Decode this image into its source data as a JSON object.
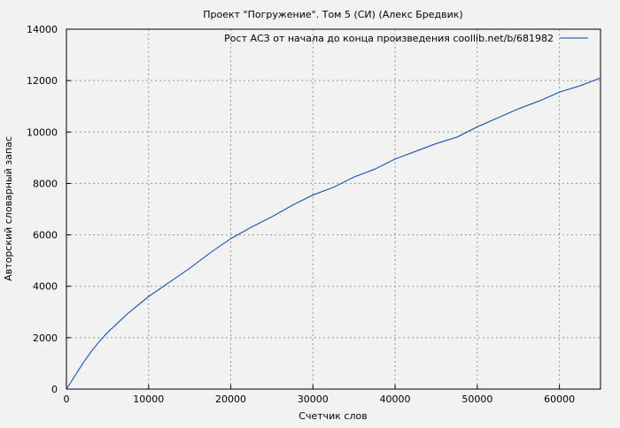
{
  "chart_data": {
    "type": "line",
    "title": "Проект \"Погружение\". Том 5 (СИ) (Алекс Бредвик)",
    "xlabel": "Счетчик слов",
    "ylabel": "Авторский словарный запас",
    "xlim": [
      0,
      65000
    ],
    "ylim": [
      0,
      14000
    ],
    "xticks": [
      0,
      10000,
      20000,
      30000,
      40000,
      50000,
      60000
    ],
    "yticks": [
      0,
      2000,
      4000,
      6000,
      8000,
      10000,
      12000,
      14000
    ],
    "grid": true,
    "legend_position": "top-right",
    "series": [
      {
        "name": "Рост АСЗ от начала до конца произведения coollib.net/b/681982",
        "color": "#0044aa",
        "x": [
          0,
          1000,
          2000,
          3000,
          4000,
          5000,
          6000,
          7500,
          10000,
          12500,
          15000,
          17500,
          20000,
          22500,
          25000,
          27500,
          30000,
          32500,
          35000,
          37500,
          40000,
          42500,
          45000,
          47500,
          50000,
          52500,
          55000,
          57500,
          60000,
          62500,
          65000
        ],
        "y": [
          0,
          500,
          1000,
          1450,
          1850,
          2200,
          2500,
          2950,
          3600,
          4150,
          4700,
          5300,
          5850,
          6300,
          6700,
          7150,
          7550,
          7850,
          8250,
          8550,
          8950,
          9250,
          9550,
          9800,
          10200,
          10550,
          10900,
          11200,
          11550,
          11800,
          12100
        ]
      }
    ]
  }
}
